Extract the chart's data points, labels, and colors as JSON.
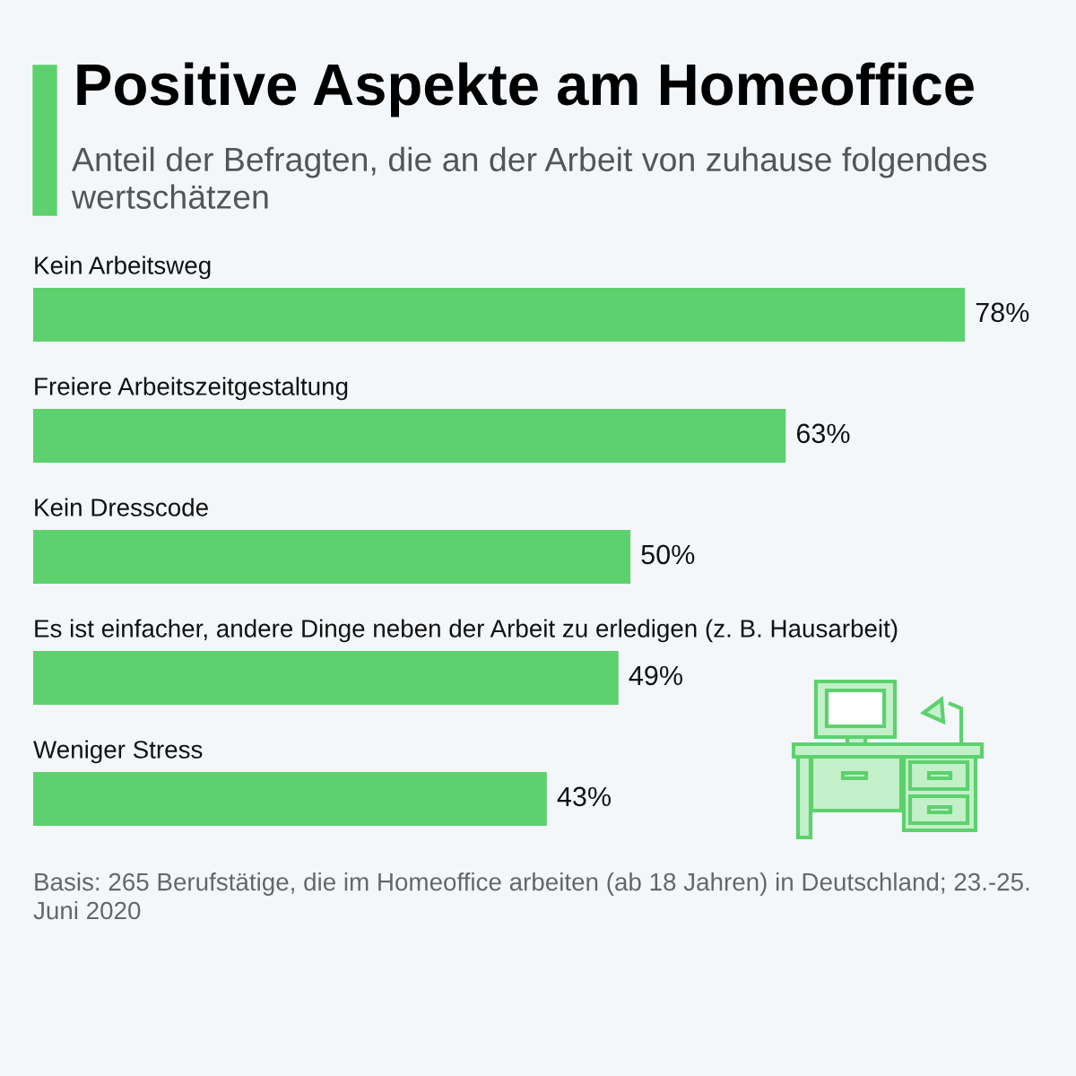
{
  "chart_data": {
    "type": "bar",
    "orientation": "horizontal",
    "title": "Positive Aspekte am Homeoffice",
    "subtitle": "Anteil der Befragten, die an der Arbeit von zuhause folgendes wertschätzen",
    "categories": [
      "Kein Arbeitsweg",
      "Freiere Arbeitszeitgestaltung",
      "Kein Dresscode",
      "Es ist einfacher, andere Dinge neben der Arbeit zu erledigen (z. B. Hausarbeit)",
      "Weniger Stress"
    ],
    "values": [
      78,
      63,
      50,
      49,
      43
    ],
    "value_labels": [
      "78%",
      "63%",
      "50%",
      "49%",
      "43%"
    ],
    "color": "#5dd16e",
    "annotations": [
      "Basis: 265 Berufstätige, die im Homeoffice arbeiten (ab 18 Jahren) in Deutschland; 23.-25. Juni 2020"
    ]
  }
}
